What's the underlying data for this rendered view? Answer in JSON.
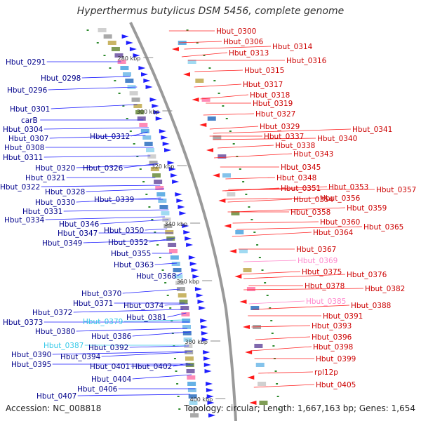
{
  "title": "Hyperthermus butylicus DSM 5456, complete genome",
  "footer": {
    "accession": "Accession: NC_008818",
    "summary": "Topology: circular; Length: 1,667,163 bp; Genes: 1,654"
  },
  "colors": {
    "backbone": "#9a9a9a",
    "left_label": "#00008b",
    "left_line": "#1a1aff",
    "right_label": "#cc0000",
    "right_line": "#ff2020",
    "pink": "#ff88cc",
    "cyan": "#33c8e8",
    "tick": "#2e8b2e",
    "forward_arrow": "#1f1fff",
    "reverse_arrow": "#ff1a1a"
  },
  "ticks": [
    "280 kbp",
    "300 kbp",
    "320 kbp",
    "340 kbp",
    "360 kbp",
    "380 kbp",
    "400 kbp"
  ],
  "left_labels": [
    "Hbut_0291",
    "Hbut_0298",
    "Hbut_0296",
    "Hbut_0301",
    "carB",
    "Hbut_0304",
    "Hbut_0307",
    "Hbut_0312",
    "Hbut_0308",
    "Hbut_0311",
    "Hbut_0320",
    "Hbut_0326",
    "Hbut_0321",
    "Hbut_0322",
    "Hbut_0328",
    "Hbut_0330",
    "Hbut_0339",
    "Hbut_0331",
    "Hbut_0334",
    "Hbut_0346",
    "Hbut_0347",
    "Hbut_0350",
    "Hbut_0349",
    "Hbut_0352",
    "Hbut_0355",
    "Hbut_0363",
    "Hbut_0368",
    "Hbut_0370",
    "Hbut_0371",
    "Hbut_0374",
    "Hbut_0372",
    "Hbut_0381",
    "Hbut_0373",
    "Hbut_0379",
    "Hbut_0380",
    "Hbut_0386",
    "Hbut_0387",
    "Hbut_0392",
    "Hbut_0390",
    "Hbut_0394",
    "Hbut_0395",
    "Hbut_0401",
    "Hbut_0402",
    "Hbut_0404",
    "Hbut_0406",
    "Hbut_0407"
  ],
  "right_labels": [
    "Hbut_0300",
    "Hbut_0306",
    "Hbut_0314",
    "Hbut_0313",
    "Hbut_0316",
    "Hbut_0315",
    "Hbut_0317",
    "Hbut_0318",
    "Hbut_0319",
    "Hbut_0327",
    "Hbut_0329",
    "Hbut_0341",
    "Hbut_0337",
    "Hbut_0340",
    "Hbut_0338",
    "Hbut_0343",
    "Hbut_0345",
    "Hbut_0348",
    "Hbut_0351",
    "Hbut_0353",
    "Hbut_0357",
    "Hbut_0356",
    "Hbut_0354",
    "Hbut_0359",
    "Hbut_0358",
    "Hbut_0360",
    "Hbut_0365",
    "Hbut_0364",
    "Hbut_0367",
    "Hbut_0369",
    "Hbut_0375",
    "Hbut_0376",
    "Hbut_0378",
    "Hbut_0382",
    "Hbut_0385",
    "Hbut_0388",
    "Hbut_0391",
    "Hbut_0393",
    "Hbut_0396",
    "Hbut_0398",
    "Hbut_0399",
    "rpl12p",
    "Hbut_0405"
  ]
}
